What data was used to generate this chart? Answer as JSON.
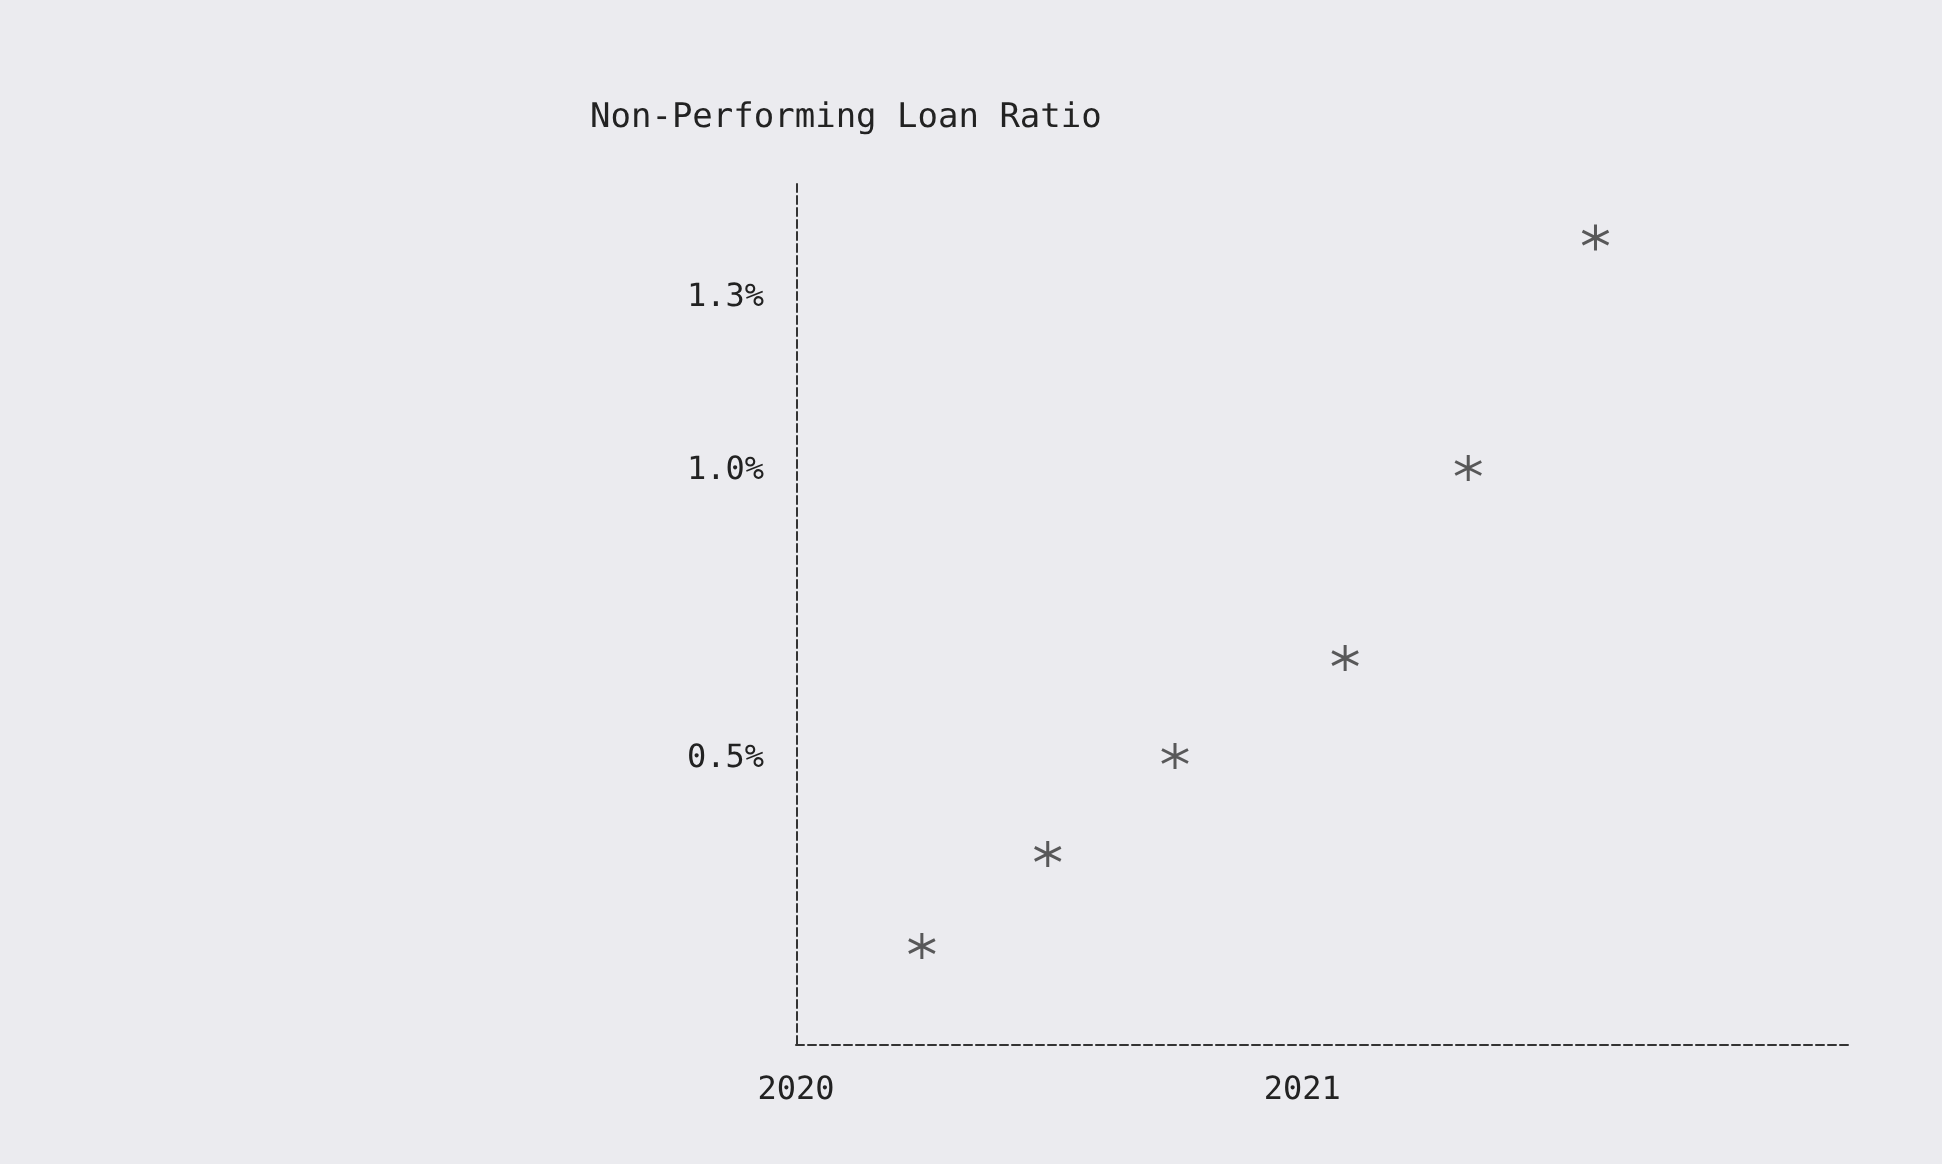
{
  "chart_data": {
    "type": "scatter",
    "title": "Non-Performing Loan Ratio",
    "x": [
      "2020-04",
      "2020-07",
      "2020-10",
      "2021-02",
      "2021-05",
      "2021-08"
    ],
    "values": [
      0.17,
      0.33,
      0.5,
      0.67,
      1.0,
      1.4
    ],
    "color": "#333333",
    "marker": "cross",
    "grid": false,
    "xlim": [
      "2020-01",
      "2022-02"
    ],
    "xticks": [
      {
        "value": "2020",
        "label": "2020"
      },
      {
        "value": "2021",
        "label": "2021"
      }
    ],
    "ylim": [
      0,
      1.5
    ],
    "yticks": [
      {
        "value": 0.5,
        "label": "0.5%"
      },
      {
        "value": 1.0,
        "label": "1.0%"
      },
      {
        "value": 1.3,
        "label": "1.3%"
      }
    ]
  }
}
